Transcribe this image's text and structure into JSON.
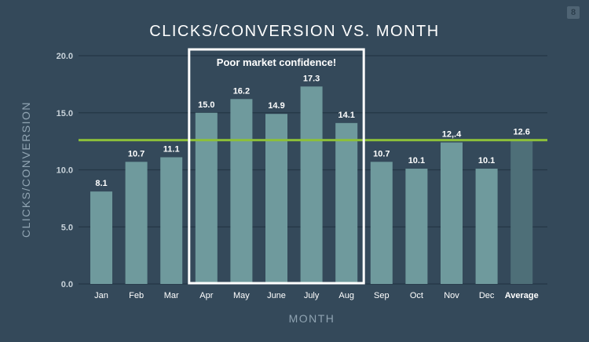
{
  "badge": "8",
  "colors": {
    "background": "#34495a",
    "bar": "#6f9a9d",
    "bar_highlight": "#4e6f78",
    "average_line": "#8cbf3a",
    "grid": "#243746",
    "text": "#ffffff",
    "axis_text": "#c9d3da",
    "axis_title": "#8fa3b1",
    "box": "#ffffff"
  },
  "chart_data": {
    "type": "bar",
    "title": "CLICKS/CONVERSION VS. MONTH",
    "xlabel": "MONTH",
    "ylabel": "CLICKS/CONVERSION",
    "ylim": [
      0,
      20
    ],
    "yticks": [
      "0.0",
      "5.0",
      "10.0",
      "15.0",
      "20.0"
    ],
    "ytick_values": [
      0,
      5,
      10,
      15,
      20
    ],
    "categories": [
      "Jan",
      "Feb",
      "Mar",
      "Apr",
      "May",
      "June",
      "July",
      "Aug",
      "Sep",
      "Oct",
      "Nov",
      "Dec",
      "Average"
    ],
    "values": [
      8.1,
      10.7,
      11.1,
      15.0,
      16.2,
      14.9,
      17.3,
      14.1,
      10.7,
      10.1,
      12.4,
      10.1,
      12.6
    ],
    "value_labels": [
      "8.1",
      "10.7",
      "11.1",
      "15.0",
      "16.2",
      "14.9",
      "17.3",
      "14.1",
      "10.7",
      "10.1",
      "12,.4",
      "10.1",
      "12.6"
    ],
    "highlight_category": "Average",
    "reference_line": {
      "value": 12.6
    },
    "annotation": {
      "text": "Poor market confidence!",
      "from_category": "Apr",
      "to_category": "Aug"
    },
    "grid": true,
    "legend": "none"
  }
}
